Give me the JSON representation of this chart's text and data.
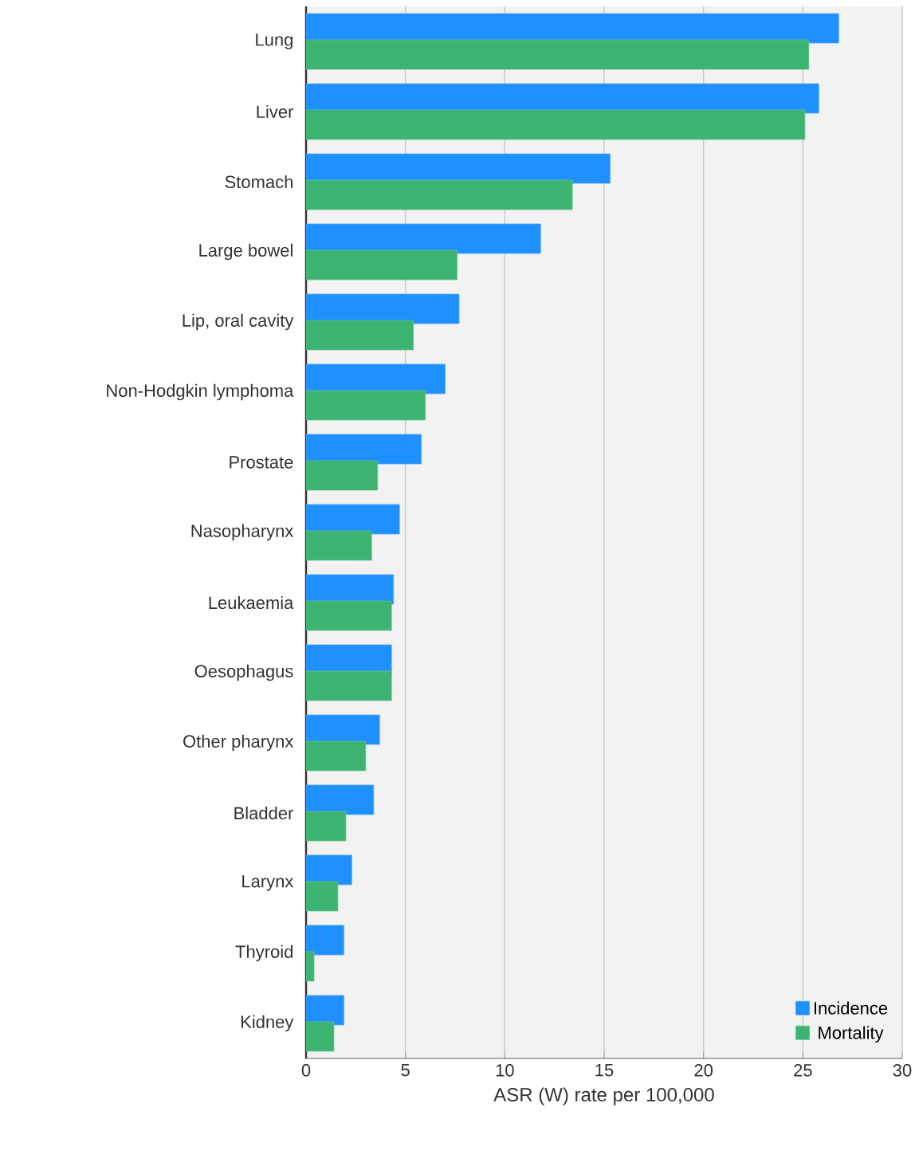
{
  "chart_data": {
    "type": "bar",
    "orientation": "horizontal",
    "xlabel": "ASR (W) rate per 100,000",
    "categories": [
      "Lung",
      "Liver",
      "Stomach",
      "Large bowel",
      "Lip, oral cavity",
      "Non-Hodgkin lymphoma",
      "Prostate",
      "Nasopharynx",
      "Leukaemia",
      "Oesophagus",
      "Other pharynx",
      "Bladder",
      "Larynx",
      "Thyroid",
      "Kidney"
    ],
    "series": [
      {
        "name": "Incidence",
        "color": "#1e90ff",
        "values": [
          26.8,
          25.8,
          15.3,
          11.8,
          7.7,
          7.0,
          5.8,
          4.7,
          4.4,
          4.3,
          3.7,
          3.4,
          2.3,
          1.9,
          1.9
        ]
      },
      {
        "name": "Mortality",
        "color": "#3cb371",
        "values": [
          25.3,
          25.1,
          13.4,
          7.6,
          5.4,
          6.0,
          3.6,
          3.3,
          4.3,
          4.3,
          3.0,
          2.0,
          1.6,
          0.4,
          1.4
        ]
      }
    ],
    "xlim": [
      0,
      30
    ],
    "xticks": [
      0,
      5,
      10,
      15,
      20,
      25,
      30
    ],
    "grid": "x",
    "legend": "bottom right"
  }
}
